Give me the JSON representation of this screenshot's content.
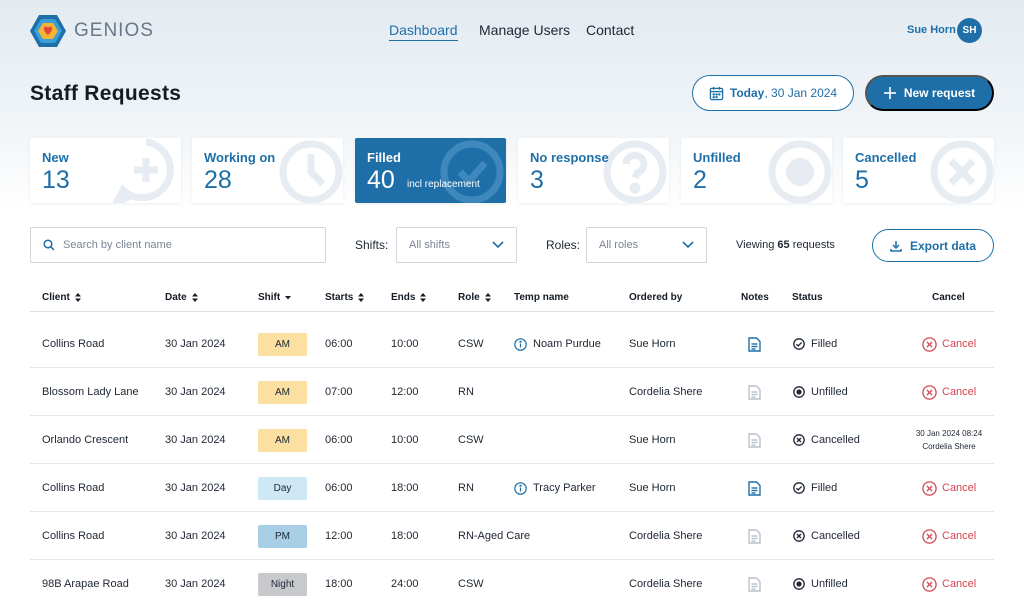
{
  "header": {
    "brand": "GENIOS",
    "nav": [
      {
        "label": "Dashboard",
        "active": true
      },
      {
        "label": "Manage Users",
        "active": false
      },
      {
        "label": "Contact",
        "active": false
      }
    ],
    "user_name": "Sue Horn",
    "user_initials": "SH"
  },
  "page": {
    "title": "Staff Requests",
    "date_prefix": "Today",
    "date_value": ", 30 Jan 2024",
    "new_request_label": "New request"
  },
  "stats": [
    {
      "label": "New",
      "value": "13",
      "icon": "plus-bubble-icon"
    },
    {
      "label": "Working on",
      "value": "28",
      "icon": "clock-icon"
    },
    {
      "label": "Filled",
      "value": "40",
      "sub": "incl replacement",
      "icon": "check-circle-icon"
    },
    {
      "label": "No response",
      "value": "3",
      "icon": "question-icon"
    },
    {
      "label": "Unfilled",
      "value": "2",
      "icon": "circle-dot-icon"
    },
    {
      "label": "Cancelled",
      "value": "5",
      "icon": "x-circle-icon"
    }
  ],
  "filters": {
    "search_placeholder": "Search by client name",
    "shifts_label": "Shifts:",
    "shifts_value": "All shifts",
    "roles_label": "Roles:",
    "roles_value": "All roles",
    "viewing_prefix": "Viewing ",
    "viewing_count": "65",
    "viewing_suffix": " requests",
    "export_label": "Export data"
  },
  "table": {
    "columns": [
      "Client",
      "Date",
      "Shift",
      "Starts",
      "Ends",
      "Role",
      "Temp name",
      "Ordered by",
      "Notes",
      "Status",
      "Cancel"
    ],
    "rows": [
      {
        "client": "Collins Road",
        "date": "30 Jan 2024",
        "shift": "AM",
        "starts": "06:00",
        "ends": "10:00",
        "role": "CSW",
        "temp": "Noam Purdue",
        "ordered_by": "Sue Horn",
        "has_notes": true,
        "status": "Filled",
        "cancel": "Cancel"
      },
      {
        "client": "Blossom Lady Lane",
        "date": "30 Jan 2024",
        "shift": "AM",
        "starts": "07:00",
        "ends": "12:00",
        "role": "RN",
        "temp": "",
        "ordered_by": "Cordelia Shere",
        "has_notes": false,
        "status": "Unfilled",
        "cancel": "Cancel"
      },
      {
        "client": "Orlando Crescent",
        "date": "30 Jan 2024",
        "shift": "AM",
        "starts": "06:00",
        "ends": "10:00",
        "role": "CSW",
        "temp": "",
        "ordered_by": "Sue Horn",
        "has_notes": false,
        "status": "Cancelled",
        "cancelled_at": "30 Jan 2024 08:24",
        "cancelled_by": "Cordelia Shere"
      },
      {
        "client": "Collins Road",
        "date": "30 Jan 2024",
        "shift": "Day",
        "starts": "06:00",
        "ends": "18:00",
        "role": "RN",
        "temp": "Tracy Parker",
        "ordered_by": "Sue Horn",
        "has_notes": true,
        "status": "Filled",
        "cancel": "Cancel"
      },
      {
        "client": "Collins Road",
        "date": "30 Jan 2024",
        "shift": "PM",
        "starts": "12:00",
        "ends": "18:00",
        "role": "RN-Aged Care",
        "temp": "",
        "ordered_by": "Cordelia Shere",
        "has_notes": false,
        "status": "Cancelled",
        "cancel": "Cancel"
      },
      {
        "client": "98B Arapae Road",
        "date": "30 Jan 2024",
        "shift": "Night",
        "starts": "18:00",
        "ends": "24:00",
        "role": "CSW",
        "temp": "",
        "ordered_by": "Cordelia Shere",
        "has_notes": false,
        "status": "Unfilled",
        "cancel": "Cancel"
      }
    ]
  },
  "colors": {
    "primary": "#1e6fa8",
    "cancel": "#d64550",
    "shift_AM": "#fbe0a1",
    "shift_Day": "#cfe8f5",
    "shift_PM": "#a9cfe6",
    "shift_Night": "#c7c9cc"
  }
}
